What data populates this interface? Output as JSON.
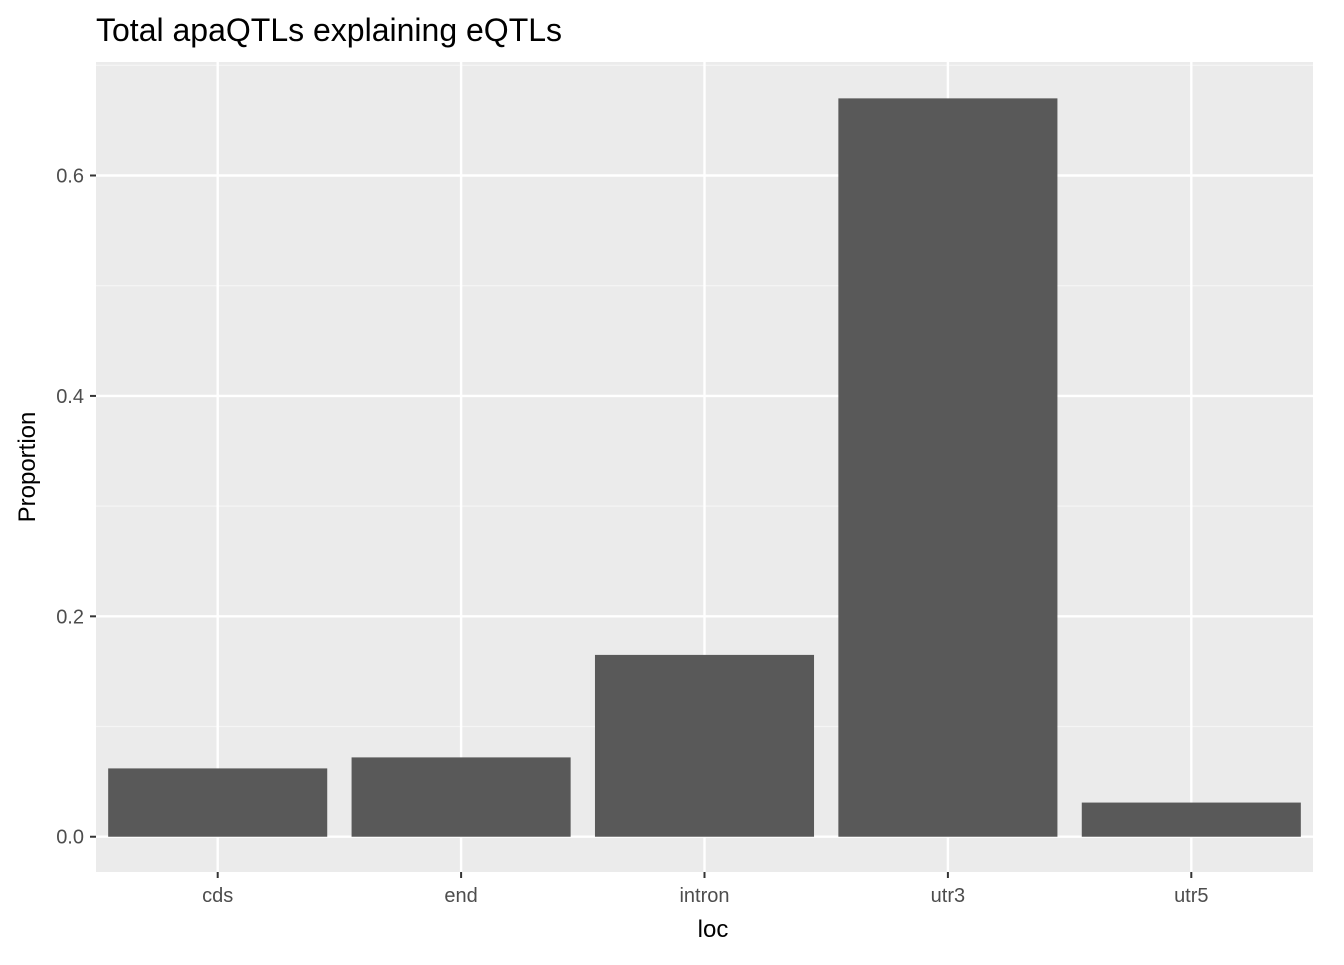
{
  "chart_data": {
    "type": "bar",
    "title": "Total apaQTLs explaining eQTLs",
    "xlabel": "loc",
    "ylabel": "Proportion",
    "categories": [
      "cds",
      "end",
      "intron",
      "utr3",
      "utr5"
    ],
    "values": [
      0.062,
      0.072,
      0.165,
      0.67,
      0.031
    ],
    "ylim": [
      -0.032,
      0.703
    ],
    "yticks": [
      0.0,
      0.2,
      0.4,
      0.6
    ],
    "ytick_labels": [
      "0.0",
      "0.2",
      "0.4",
      "0.6"
    ],
    "grid": true,
    "legend": "none",
    "colors": {
      "bar": "#595959",
      "panel": "#ebebeb",
      "grid_major": "#ffffff",
      "grid_minor": "#f5f5f5",
      "tick_text": "#4d4d4d",
      "text": "#000000"
    }
  }
}
